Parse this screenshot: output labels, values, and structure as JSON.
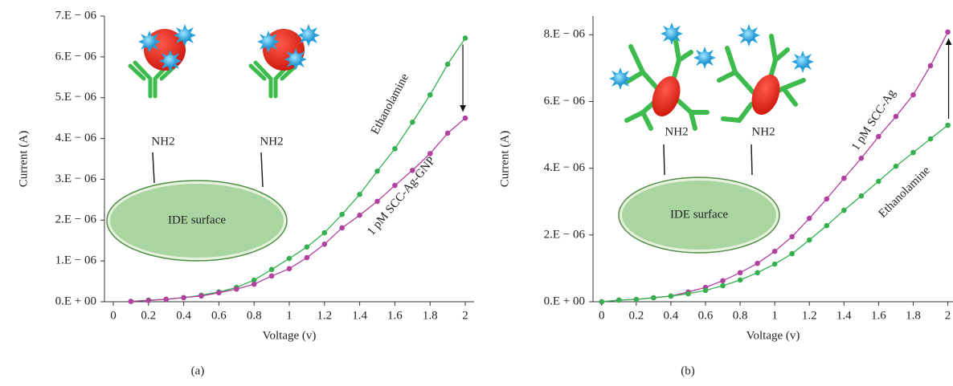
{
  "chart_data": [
    {
      "type": "line",
      "caption": "(a)",
      "xlabel": "Voltage (v)",
      "ylabel": "Current (A)",
      "annotations": [
        "NH2",
        "NH2",
        "IDE surface"
      ],
      "xlim": [
        -0.05,
        2.05
      ],
      "ylim": [
        0,
        7e-06
      ],
      "xticks": [
        0,
        0.2,
        0.4,
        0.6,
        0.8,
        1,
        1.2,
        1.4,
        1.6,
        1.8,
        2
      ],
      "yticks": [
        {
          "value": 0,
          "label": "0.E + 00"
        },
        {
          "value": 1e-06,
          "label": "1.E − 06"
        },
        {
          "value": 2e-06,
          "label": "2.E − 06"
        },
        {
          "value": 3e-06,
          "label": "3.E − 06"
        },
        {
          "value": 4e-06,
          "label": "4.E − 06"
        },
        {
          "value": 5e-06,
          "label": "5.E − 06"
        },
        {
          "value": 6e-06,
          "label": "6.E − 06"
        },
        {
          "value": 7e-06,
          "label": "7.E − 06"
        }
      ],
      "x": [
        0.1,
        0.2,
        0.3,
        0.4,
        0.5,
        0.6,
        0.7,
        0.8,
        0.9,
        1.0,
        1.1,
        1.2,
        1.3,
        1.4,
        1.5,
        1.6,
        1.7,
        1.8,
        1.9,
        2.0
      ],
      "series": [
        {
          "name": "Ethanolamine",
          "color": "#34b04e",
          "values": [
            1e-08,
            4e-08,
            6e-08,
            1e-07,
            1.6e-07,
            2.4e-07,
            3.5e-07,
            5.3e-07,
            7.9e-07,
            1.06e-06,
            1.34e-06,
            1.69e-06,
            2.14e-06,
            2.63e-06,
            3.2e-06,
            3.75e-06,
            4.4e-06,
            5.07e-06,
            5.82e-06,
            6.46e-06
          ]
        },
        {
          "name": "1 pM SCC-Ag-GNP",
          "color": "#b2409e",
          "values": [
            1e-08,
            3e-08,
            6e-08,
            1e-07,
            1.4e-07,
            2.2e-07,
            3.1e-07,
            4.3e-07,
            6.3e-07,
            8.1e-07,
            1.08e-06,
            1.41e-06,
            1.81e-06,
            2.12e-06,
            2.46e-06,
            2.85e-06,
            3.22e-06,
            3.63e-06,
            4.13e-06,
            4.5e-06
          ]
        }
      ]
    },
    {
      "type": "line",
      "caption": "(b)",
      "xlabel": "Voltage (v)",
      "ylabel": "Current (A)",
      "annotations": [
        "NH2",
        "NH2",
        "IDE surface"
      ],
      "xlim": [
        -0.05,
        2.03
      ],
      "ylim": [
        0,
        8.56e-06
      ],
      "xticks": [
        0,
        0.2,
        0.4,
        0.6,
        0.8,
        1,
        1.2,
        1.4,
        1.6,
        1.8,
        2
      ],
      "yticks": [
        {
          "value": 0,
          "label": "0.E + 00"
        },
        {
          "value": 2e-06,
          "label": "2.E − 06"
        },
        {
          "value": 4e-06,
          "label": "4.E − 06"
        },
        {
          "value": 6e-06,
          "label": "6.E − 06"
        },
        {
          "value": 8e-06,
          "label": "8.E − 06"
        }
      ],
      "x": [
        0,
        0.1,
        0.2,
        0.3,
        0.4,
        0.5,
        0.6,
        0.7,
        0.8,
        0.9,
        1.0,
        1.1,
        1.2,
        1.3,
        1.4,
        1.5,
        1.6,
        1.7,
        1.8,
        1.9,
        2.0
      ],
      "series": [
        {
          "name": "1 pM SCC-Ag",
          "color": "#b2409e",
          "values": [
            0,
            5e-08,
            7e-08,
            1.2e-07,
            1.7e-07,
            2.9e-07,
            4.3e-07,
            6.3e-07,
            8.7e-07,
            1.15e-06,
            1.51e-06,
            1.95e-06,
            2.5e-06,
            3.08e-06,
            3.7e-06,
            4.3e-06,
            4.95e-06,
            5.55e-06,
            6.2e-06,
            7.07e-06,
            8.08e-06
          ]
        },
        {
          "name": "Ethanolamine",
          "color": "#34b04e",
          "values": [
            0,
            5e-08,
            7e-08,
            1.2e-07,
            1.7e-07,
            2.4e-07,
            3.4e-07,
            4.8e-07,
            6.5e-07,
            8.7e-07,
            1.13e-06,
            1.44e-06,
            1.85e-06,
            2.28e-06,
            2.74e-06,
            3.17e-06,
            3.61e-06,
            4.06e-06,
            4.47e-06,
            4.88e-06,
            5.29e-06
          ]
        }
      ]
    }
  ]
}
